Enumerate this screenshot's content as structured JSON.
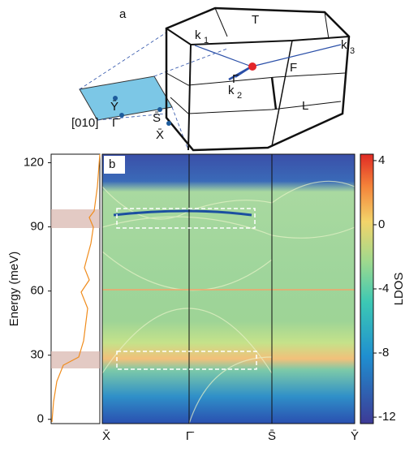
{
  "panel_a": {
    "label": "a",
    "points": [
      "T",
      "k",
      "1",
      "k",
      "3",
      "Γ",
      "F",
      "k",
      "2",
      "L"
    ],
    "direction": "[010]",
    "surface_points": [
      "Ȳ",
      "Γ̄",
      "S̄",
      "X̄"
    ]
  },
  "panel_b": {
    "label": "b",
    "ylabel": "Energy (meV)",
    "ylim": [
      -2,
      124
    ],
    "yticks": [
      0,
      30,
      60,
      90,
      120
    ],
    "x_labels": [
      "X̄",
      "Γ̄",
      "S̄",
      "Ȳ"
    ],
    "colorbar": {
      "label": "LDOS",
      "lim": [
        -12.4,
        4.4
      ],
      "ticks": [
        4,
        0,
        -4,
        -8,
        -12
      ]
    }
  }
}
